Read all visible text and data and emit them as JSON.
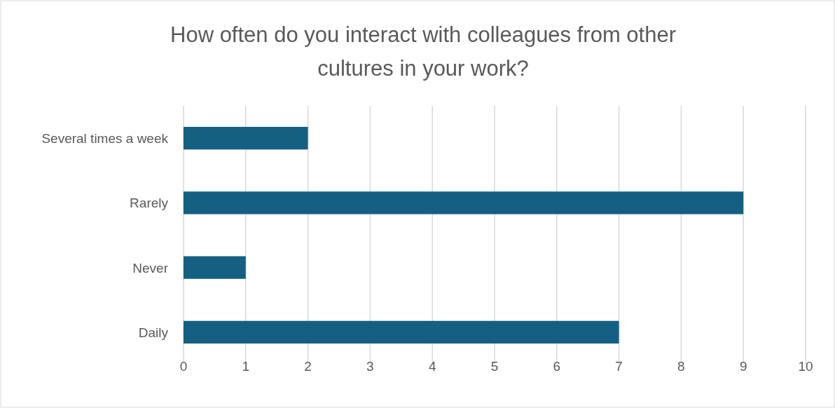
{
  "chart_data": {
    "type": "bar",
    "orientation": "horizontal",
    "title": "How often do you interact with colleagues from other cultures in your work?",
    "categories": [
      "Several times a week",
      "Rarely",
      "Never",
      "Daily"
    ],
    "values": [
      2,
      9,
      1,
      7
    ],
    "color": "#156082",
    "xlim": [
      0,
      10
    ],
    "xticks": [
      0,
      1,
      2,
      3,
      4,
      5,
      6,
      7,
      8,
      9,
      10
    ],
    "grid": "x"
  }
}
